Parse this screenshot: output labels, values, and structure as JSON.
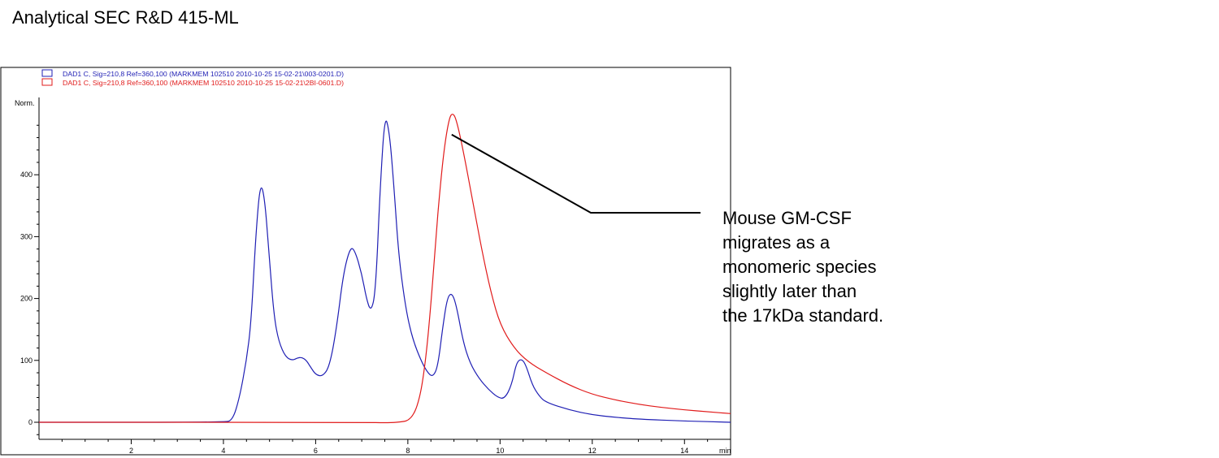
{
  "slide": {
    "title": "Analytical SEC R&D 415-ML",
    "annotation_lines": [
      "Mouse GM-CSF",
      "migrates as a",
      "monomeric species",
      "slightly later than",
      "the 17kDa standard."
    ]
  },
  "chart_data": {
    "type": "line",
    "title": "",
    "ylabel": "Norm.",
    "xlabel": "min",
    "xlim": [
      0,
      15
    ],
    "ylim": [
      -30,
      505
    ],
    "x_ticks": [
      2,
      4,
      6,
      8,
      10,
      12,
      14
    ],
    "y_ticks": [
      0,
      100,
      200,
      300,
      400
    ],
    "grid": false,
    "legend": "top-left",
    "annotation_target": {
      "x": 8.95,
      "y": 465
    },
    "series": [
      {
        "name": "DAD1 C, Sig=210,8 Ref=360,100 (MARKMEM 102510 2010-10-25 15-02-21\\003-0201.D)",
        "color": "#1f1fb4",
        "points": [
          [
            0,
            0
          ],
          [
            4.0,
            0
          ],
          [
            4.2,
            3
          ],
          [
            4.35,
            40
          ],
          [
            4.5,
            100
          ],
          [
            4.6,
            160
          ],
          [
            4.7,
            300
          ],
          [
            4.8,
            390
          ],
          [
            4.9,
            360
          ],
          [
            5.0,
            260
          ],
          [
            5.1,
            170
          ],
          [
            5.2,
            130
          ],
          [
            5.35,
            105
          ],
          [
            5.5,
            100
          ],
          [
            5.6,
            104
          ],
          [
            5.7,
            105
          ],
          [
            5.8,
            100
          ],
          [
            5.9,
            88
          ],
          [
            6.0,
            77
          ],
          [
            6.15,
            74
          ],
          [
            6.3,
            90
          ],
          [
            6.45,
            150
          ],
          [
            6.6,
            240
          ],
          [
            6.75,
            283
          ],
          [
            6.85,
            278
          ],
          [
            7.0,
            240
          ],
          [
            7.1,
            200
          ],
          [
            7.2,
            178
          ],
          [
            7.3,
            210
          ],
          [
            7.4,
            380
          ],
          [
            7.5,
            498
          ],
          [
            7.6,
            470
          ],
          [
            7.7,
            380
          ],
          [
            7.8,
            270
          ],
          [
            7.95,
            185
          ],
          [
            8.1,
            135
          ],
          [
            8.3,
            97
          ],
          [
            8.45,
            78
          ],
          [
            8.55,
            74
          ],
          [
            8.65,
            90
          ],
          [
            8.75,
            150
          ],
          [
            8.85,
            200
          ],
          [
            8.95,
            210
          ],
          [
            9.05,
            190
          ],
          [
            9.2,
            130
          ],
          [
            9.35,
            95
          ],
          [
            9.55,
            70
          ],
          [
            9.75,
            53
          ],
          [
            9.95,
            40
          ],
          [
            10.1,
            38
          ],
          [
            10.25,
            60
          ],
          [
            10.35,
            95
          ],
          [
            10.45,
            103
          ],
          [
            10.55,
            95
          ],
          [
            10.7,
            60
          ],
          [
            10.85,
            42
          ],
          [
            11.0,
            32
          ],
          [
            11.5,
            20
          ],
          [
            12.0,
            12
          ],
          [
            12.5,
            8
          ],
          [
            13.0,
            5
          ],
          [
            14.0,
            2
          ],
          [
            15.0,
            0
          ]
        ]
      },
      {
        "name": "DAD1 C, Sig=210,8 Ref=360,100 (MARKMEM 102510 2010-10-25 15-02-21\\2BI-0601.D)",
        "color": "#e11b1b",
        "points": [
          [
            0,
            0
          ],
          [
            7.0,
            0
          ],
          [
            7.6,
            -1
          ],
          [
            7.9,
            1
          ],
          [
            8.0,
            3
          ],
          [
            8.1,
            10
          ],
          [
            8.2,
            25
          ],
          [
            8.3,
            55
          ],
          [
            8.4,
            110
          ],
          [
            8.5,
            190
          ],
          [
            8.6,
            290
          ],
          [
            8.7,
            380
          ],
          [
            8.8,
            450
          ],
          [
            8.9,
            492
          ],
          [
            8.97,
            500
          ],
          [
            9.05,
            490
          ],
          [
            9.2,
            440
          ],
          [
            9.4,
            360
          ],
          [
            9.6,
            280
          ],
          [
            9.8,
            210
          ],
          [
            10.0,
            158
          ],
          [
            10.3,
            120
          ],
          [
            10.6,
            98
          ],
          [
            11.0,
            80
          ],
          [
            11.5,
            60
          ],
          [
            12.0,
            45
          ],
          [
            12.5,
            36
          ],
          [
            13.0,
            29
          ],
          [
            13.5,
            24
          ],
          [
            14.0,
            20
          ],
          [
            14.5,
            17
          ],
          [
            15.0,
            14
          ]
        ]
      }
    ]
  }
}
